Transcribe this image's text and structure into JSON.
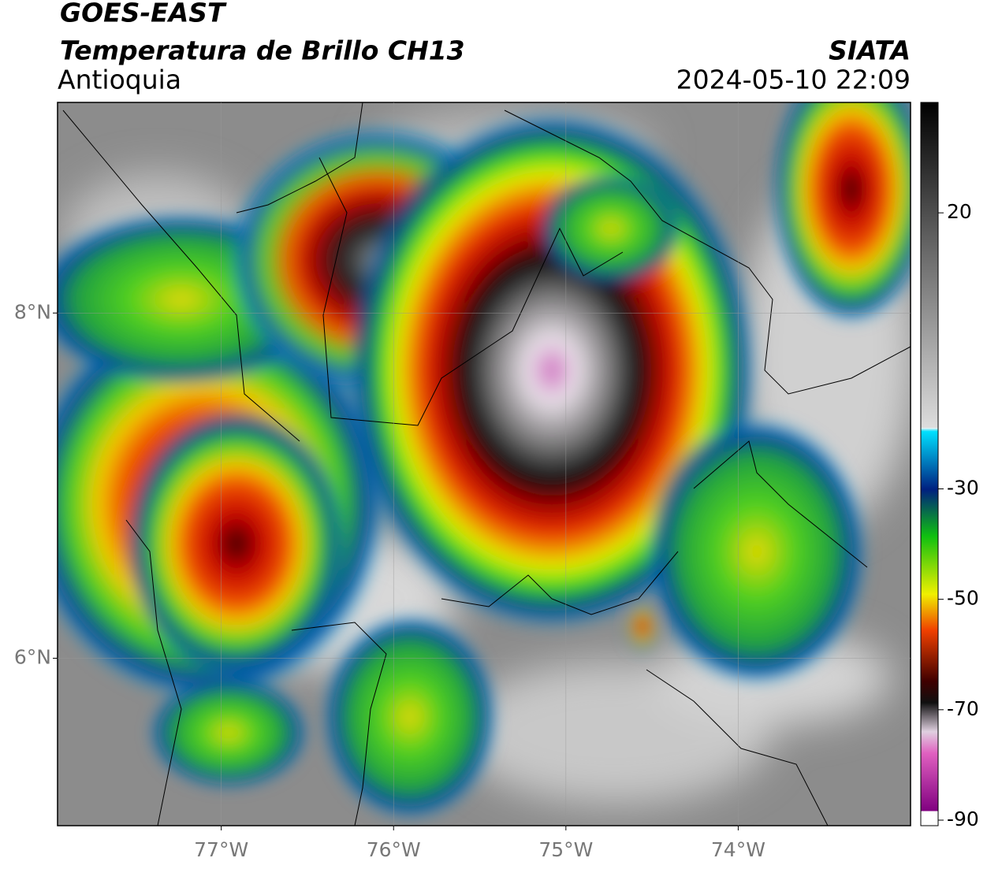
{
  "header": {
    "title": "GOES-EAST",
    "product": "Temperatura de Brillo CH13",
    "region": "Antioquia",
    "source": "SIATA",
    "datetime": "2024-05-10 22:09"
  },
  "map": {
    "xlim": [
      -77.95,
      -73.0
    ],
    "ylim": [
      5.03,
      9.22
    ],
    "xticks": [
      {
        "value": -77,
        "label": "77°W"
      },
      {
        "value": -76,
        "label": "76°W"
      },
      {
        "value": -75,
        "label": "75°W"
      },
      {
        "value": -74,
        "label": "74°W"
      }
    ],
    "yticks": [
      {
        "value": 8,
        "label": "8°N"
      },
      {
        "value": 6,
        "label": "6°N"
      }
    ]
  },
  "colorbar": {
    "lim": [
      -91,
      40
    ],
    "ticks": [
      20,
      -30,
      -50,
      -70,
      -90
    ]
  }
}
